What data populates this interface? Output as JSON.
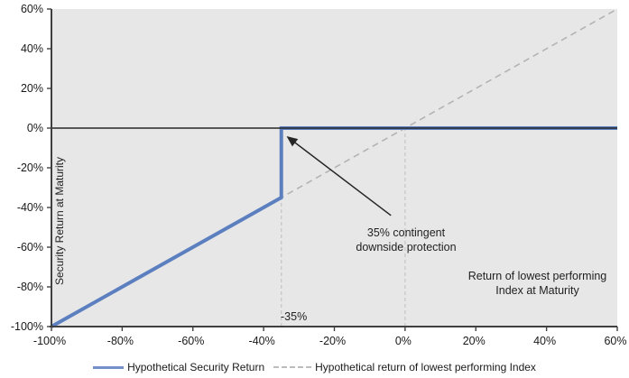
{
  "chart_data": {
    "type": "line",
    "title": "",
    "xlabel": "Return of lowest performing Index at Maturity",
    "ylabel": "Security Return at Maturity",
    "xlim": [
      -100,
      60
    ],
    "ylim": [
      -100,
      60
    ],
    "grid": "vertical-dashed-only",
    "legend_position": "bottom-center",
    "x_ticks": {
      "values": [
        -100,
        -80,
        -60,
        -40,
        -20,
        0,
        20,
        40,
        60
      ],
      "labels": [
        "-100%",
        "-80%",
        "-60%",
        "-40%",
        "-20%",
        "0%",
        "20%",
        "40%",
        "60%"
      ]
    },
    "y_ticks": {
      "values": [
        60,
        40,
        20,
        0,
        -20,
        -40,
        -60,
        -80,
        -100
      ],
      "labels": [
        "60%",
        "40%",
        "20%",
        "0%",
        "-20%",
        "-40%",
        "-60%",
        "-80%",
        "-100%"
      ]
    },
    "series": [
      {
        "name": "Hypothetical Security Return",
        "style": "solid",
        "color": "#5c7fc0",
        "width": 4,
        "points": [
          [
            -100,
            -100
          ],
          [
            -35,
            -35
          ],
          [
            -35,
            0
          ],
          [
            60,
            0
          ]
        ]
      },
      {
        "name": "Hypothetical return of lowest performing Index",
        "style": "dashed",
        "color": "#b3b3b3",
        "width": 1.6,
        "points": [
          [
            -100,
            -100
          ],
          [
            60,
            60
          ]
        ]
      }
    ],
    "vertical_gridlines": [
      {
        "x": -35,
        "y_from": -100,
        "y_to": 0
      },
      {
        "x": 0,
        "y_from": -100,
        "y_to": 0
      }
    ],
    "zero_line_y": 0,
    "annotations": {
      "protection_note_line1": "35% contingent",
      "protection_note_line2": "downside protection",
      "arrow_from": [
        -4,
        -44
      ],
      "arrow_to": [
        -33.2,
        -4.5
      ],
      "gridline_label": "-35%",
      "inplot_xlabel_line1": "Return of lowest performing",
      "inplot_xlabel_line2": "Index at Maturity"
    },
    "legend": [
      {
        "label": "Hypothetical Security Return",
        "swatch": "solid-blue"
      },
      {
        "label": "Hypothetical return of lowest performing Index",
        "swatch": "dashed-gray"
      }
    ]
  },
  "colors": {
    "plot_bg": "#e7e7e7",
    "axis": "#404040",
    "zero_line": "#262626",
    "arrow": "#262626",
    "gridline": "#c4c4c4",
    "tick_text": "#1a1a1a",
    "series_blue": "#5c7fc0",
    "series_dashed": "#b3b3b3"
  }
}
